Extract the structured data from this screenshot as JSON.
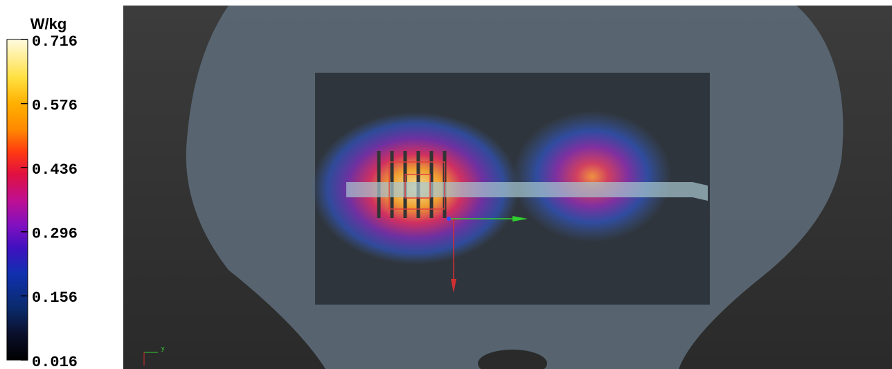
{
  "colorbar": {
    "unit": "W/kg",
    "ticks": [
      0.716,
      0.576,
      0.436,
      0.296,
      0.156,
      0.016
    ]
  },
  "triad_label": "y"
}
